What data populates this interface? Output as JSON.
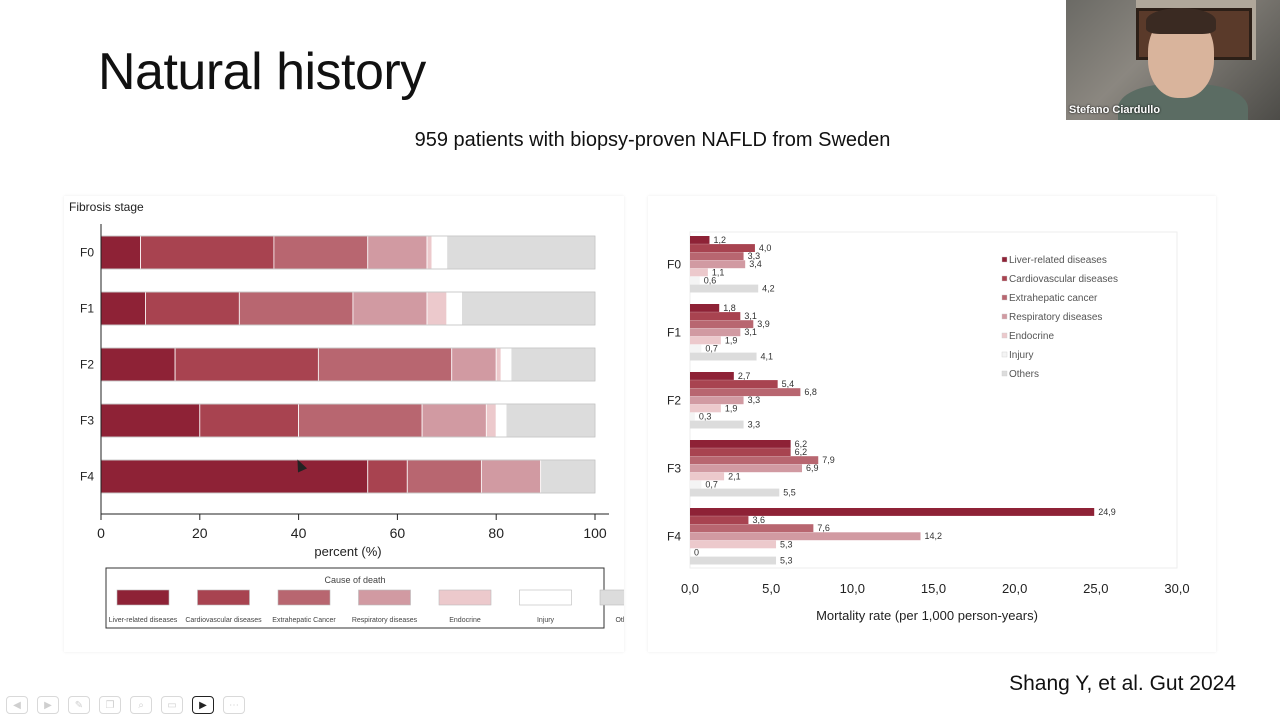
{
  "slide": {
    "title": "Natural history",
    "subtitle": "959 patients with biopsy-proven NAFLD from Sweden",
    "citation": "Shang Y, et al. Gut 2024"
  },
  "video": {
    "name": "Stefano Ciardullo"
  },
  "toolbar": {
    "icons": [
      "back-icon",
      "forward-icon",
      "pen-icon",
      "copy-icon",
      "zoom-icon",
      "screen-icon",
      "camera-icon",
      "more-icon"
    ]
  },
  "chart_data": [
    {
      "type": "bar",
      "orientation": "horizontal-stacked",
      "title": "Fibrosis stage",
      "xlabel": "percent (%)",
      "xlim": [
        0,
        100
      ],
      "xticks": [
        "0",
        "20",
        "40",
        "60",
        "80",
        "100"
      ],
      "categories": [
        "F0",
        "F1",
        "F2",
        "F3",
        "F4"
      ],
      "legend_title": "Cause of death",
      "series": [
        {
          "name": "Liver-related diseases",
          "color": "#8e2236",
          "values": [
            8,
            9,
            15,
            20,
            54
          ]
        },
        {
          "name": "Cardiovascular diseases",
          "color": "#a84350",
          "values": [
            27,
            19,
            29,
            20,
            8
          ]
        },
        {
          "name": "Extrahepatic Cancer",
          "color": "#b86670",
          "values": [
            19,
            23,
            27,
            25,
            15
          ]
        },
        {
          "name": "Respiratory diseases",
          "color": "#d19aa2",
          "values": [
            12,
            15,
            9,
            13,
            12
          ]
        },
        {
          "name": "Endocrine",
          "color": "#ecc9cc",
          "values": [
            1,
            4,
            1,
            2,
            0
          ]
        },
        {
          "name": "Injury",
          "color": "#ffffff",
          "values": [
            3,
            3,
            2,
            2,
            0
          ]
        },
        {
          "name": "Others",
          "color": "#dcdcdc",
          "values": [
            30,
            27,
            17,
            18,
            11
          ]
        }
      ]
    },
    {
      "type": "bar",
      "orientation": "horizontal-grouped",
      "xlabel": "Mortality rate (per 1,000 person-years)",
      "xlim": [
        0,
        30
      ],
      "xticks": [
        "0,0",
        "5,0",
        "10,0",
        "15,0",
        "20,0",
        "25,0",
        "30,0"
      ],
      "categories": [
        "F0",
        "F1",
        "F2",
        "F3",
        "F4"
      ],
      "series": [
        {
          "name": "Liver-related diseases",
          "color": "#8e2236",
          "values": [
            1.2,
            1.8,
            2.7,
            6.2,
            24.9
          ],
          "labels": [
            "1,2",
            "1,8",
            "2,7",
            "6,2",
            "24,9"
          ]
        },
        {
          "name": "Cardiovascular diseases",
          "color": "#a84350",
          "values": [
            4.0,
            3.1,
            5.4,
            6.2,
            3.6
          ],
          "labels": [
            "4,0",
            "3,1",
            "5,4",
            "6,2",
            "3,6"
          ]
        },
        {
          "name": "Extrahepatic cancer",
          "color": "#b86670",
          "values": [
            3.3,
            3.9,
            6.8,
            7.9,
            7.6
          ],
          "labels": [
            "3,3",
            "3,9",
            "6,8",
            "7,9",
            "7,6"
          ]
        },
        {
          "name": "Respiratory diseases",
          "color": "#d19aa2",
          "values": [
            3.4,
            3.1,
            3.3,
            6.9,
            14.2
          ],
          "labels": [
            "3,4",
            "3,1",
            "3,3",
            "6,9",
            "14,2"
          ]
        },
        {
          "name": "Endocrine",
          "color": "#ecc9cc",
          "values": [
            1.1,
            1.9,
            1.9,
            2.1,
            5.3
          ],
          "labels": [
            "1,1",
            "1,9",
            "1,9",
            "2,1",
            "5,3"
          ]
        },
        {
          "name": "Injury",
          "color": "#f4f4f4",
          "values": [
            0.6,
            0.7,
            0.3,
            0.7,
            0.0
          ],
          "labels": [
            "0,6",
            "0,7",
            "0,3",
            "0,7",
            "0"
          ]
        },
        {
          "name": "Others",
          "color": "#dcdcdc",
          "values": [
            4.2,
            4.1,
            3.3,
            5.5,
            5.3
          ],
          "labels": [
            "4,2",
            "4,1",
            "3,3",
            "5,5",
            "5,3"
          ]
        }
      ],
      "legend_position": "top-right"
    }
  ]
}
